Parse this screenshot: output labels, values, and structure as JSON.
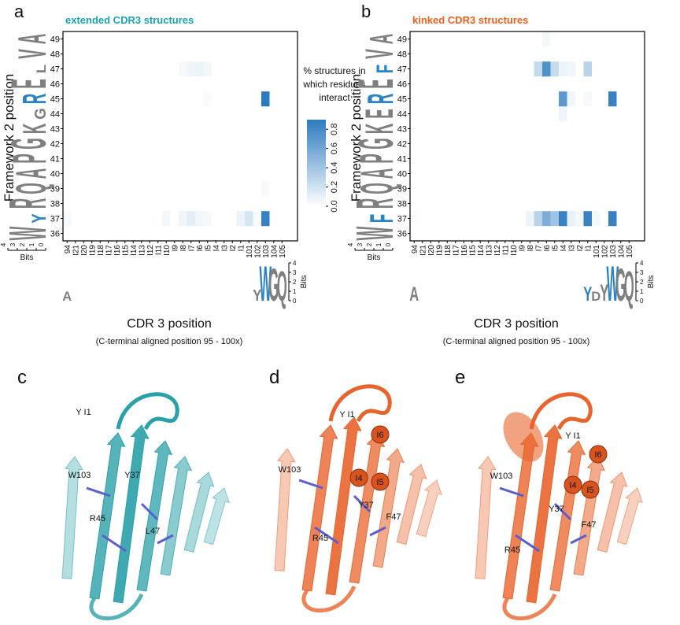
{
  "chart_data": [
    {
      "type": "heatmap",
      "panel_label": "a",
      "title": "extended CDR3 structures",
      "title_color": "#1aa3b0",
      "ylabel": "Framework 2 position",
      "xlabel": "CDR 3 position",
      "xsubtitle": "(C-terminal aligned position 95 - 100x)",
      "x_categories": [
        "94",
        "I21",
        "I20",
        "I19",
        "I18",
        "I17",
        "I16",
        "I15",
        "I14",
        "I13",
        "I12",
        "I11",
        "I10",
        "I9",
        "I8",
        "I7",
        "I6",
        "I5",
        "I4",
        "I3",
        "I2",
        "I1",
        "101",
        "102",
        "103",
        "104",
        "105"
      ],
      "y_categories": [
        36,
        37,
        38,
        39,
        40,
        41,
        42,
        43,
        44,
        45,
        46,
        47,
        48,
        49
      ],
      "color": "#2c7bbf",
      "zlim": [
        0,
        0.9
      ],
      "values": [
        [
          0,
          0,
          0,
          0,
          0,
          0,
          0,
          0,
          0,
          0,
          0,
          0,
          0,
          0,
          0,
          0,
          0,
          0,
          0,
          0,
          0,
          0,
          0,
          0,
          0,
          0,
          0
        ],
        [
          0.04,
          0,
          0,
          0,
          0,
          0,
          0,
          0,
          0,
          0,
          0,
          0,
          0.05,
          0,
          0.07,
          0.12,
          0.06,
          0.04,
          0,
          0,
          0,
          0.08,
          0.18,
          0.03,
          0.85,
          0,
          0
        ],
        [
          0,
          0,
          0,
          0,
          0,
          0,
          0,
          0,
          0,
          0,
          0,
          0,
          0,
          0,
          0,
          0,
          0,
          0,
          0,
          0,
          0,
          0,
          0,
          0,
          0,
          0,
          0
        ],
        [
          0,
          0,
          0,
          0,
          0,
          0,
          0,
          0,
          0,
          0,
          0,
          0,
          0,
          0,
          0,
          0,
          0,
          0,
          0,
          0,
          0,
          0,
          0,
          0,
          0.03,
          0,
          0
        ],
        [
          0,
          0,
          0,
          0,
          0,
          0,
          0,
          0,
          0,
          0,
          0,
          0,
          0,
          0,
          0,
          0,
          0,
          0,
          0,
          0,
          0,
          0,
          0,
          0,
          0,
          0,
          0
        ],
        [
          0,
          0,
          0,
          0,
          0,
          0,
          0,
          0,
          0,
          0,
          0,
          0,
          0,
          0,
          0,
          0,
          0,
          0,
          0,
          0,
          0,
          0,
          0,
          0,
          0,
          0,
          0
        ],
        [
          0,
          0,
          0,
          0,
          0,
          0,
          0,
          0,
          0,
          0,
          0,
          0,
          0,
          0,
          0,
          0,
          0,
          0,
          0,
          0,
          0,
          0,
          0,
          0,
          0,
          0,
          0
        ],
        [
          0,
          0,
          0,
          0,
          0,
          0,
          0,
          0,
          0,
          0,
          0,
          0,
          0,
          0,
          0,
          0,
          0,
          0,
          0,
          0,
          0,
          0,
          0,
          0,
          0,
          0,
          0
        ],
        [
          0,
          0,
          0,
          0,
          0,
          0,
          0,
          0,
          0,
          0,
          0,
          0,
          0,
          0,
          0,
          0,
          0,
          0,
          0,
          0,
          0,
          0,
          0,
          0,
          0,
          0,
          0
        ],
        [
          0,
          0,
          0,
          0,
          0,
          0,
          0,
          0,
          0,
          0,
          0,
          0,
          0,
          0,
          0,
          0,
          0,
          0.03,
          0,
          0,
          0,
          0,
          0,
          0,
          0.9,
          0,
          0
        ],
        [
          0,
          0,
          0,
          0,
          0,
          0,
          0,
          0,
          0,
          0,
          0,
          0,
          0,
          0,
          0,
          0,
          0,
          0,
          0,
          0,
          0,
          0,
          0,
          0,
          0,
          0,
          0
        ],
        [
          0,
          0,
          0,
          0,
          0,
          0,
          0,
          0,
          0,
          0,
          0,
          0,
          0,
          0,
          0.04,
          0.07,
          0.08,
          0.05,
          0,
          0,
          0,
          0,
          0,
          0,
          0,
          0,
          0
        ],
        [
          0,
          0,
          0,
          0,
          0,
          0,
          0,
          0,
          0,
          0,
          0,
          0,
          0,
          0,
          0,
          0,
          0,
          0,
          0,
          0,
          0,
          0,
          0,
          0,
          0,
          0,
          0
        ],
        [
          0,
          0,
          0,
          0,
          0,
          0,
          0,
          0,
          0,
          0,
          0,
          0,
          0,
          0,
          0,
          0,
          0,
          0,
          0,
          0,
          0,
          0,
          0,
          0,
          0,
          0,
          0
        ]
      ],
      "colorbar": {
        "label": [
          "% structures in",
          "which residues",
          "interact"
        ],
        "yticks": [
          {
            "value": 0,
            "label": "0.0"
          },
          0.2,
          0.4,
          0.6,
          0.8
        ]
      },
      "logo_axis": {
        "label": "Bits",
        "ylim": [
          0,
          4
        ],
        "yticks": [
          0,
          1,
          2,
          3,
          4
        ]
      },
      "y_logo": [
        {
          "position": 36,
          "letter": "W",
          "bits": 4,
          "color": "#7f7f7f"
        },
        {
          "position": 37,
          "letter": "Y",
          "bits": 1.5,
          "color": "#2b83c6"
        },
        {
          "position": 38,
          "letter": "R",
          "bits": 4,
          "color": "#7f7f7f"
        },
        {
          "position": 39,
          "letter": "Q",
          "bits": 3.3,
          "color": "#7f7f7f"
        },
        {
          "position": 40,
          "letter": "A",
          "bits": 3.3,
          "color": "#7f7f7f"
        },
        {
          "position": 41,
          "letter": "P",
          "bits": 3.6,
          "color": "#7f7f7f"
        },
        {
          "position": 42,
          "letter": "G",
          "bits": 3.8,
          "color": "#7f7f7f"
        },
        {
          "position": 43,
          "letter": "K",
          "bits": 2.5,
          "color": "#7f7f7f"
        },
        {
          "position": 44,
          "letter": "G",
          "bits": 1.2,
          "color": "#7f7f7f"
        },
        {
          "position": 45,
          "letter": "R",
          "bits": 2.5,
          "color": "#2b83c6"
        },
        {
          "position": 46,
          "letter": "E",
          "bits": 3.8,
          "color": "#7f7f7f"
        },
        {
          "position": 47,
          "letter": "L",
          "bits": 1,
          "color": "#7f7f7f"
        },
        {
          "position": 48,
          "letter": "V",
          "bits": 3,
          "color": "#7f7f7f"
        },
        {
          "position": 49,
          "letter": "A",
          "bits": 3,
          "color": "#7f7f7f"
        }
      ],
      "x_logo": [
        {
          "position": "94",
          "letter": "A",
          "bits": 1,
          "color": "#7f7f7f"
        },
        {
          "position": "102",
          "letter": "Y",
          "bits": 1.2,
          "color": "#7f7f7f"
        },
        {
          "position": "103",
          "letter": "W",
          "bits": 3.8,
          "color": "#2b83c6"
        },
        {
          "position": "104",
          "letter": "G",
          "bits": 3.5,
          "color": "#7f7f7f"
        },
        {
          "position": "105",
          "letter": "Q",
          "bits": 3.2,
          "color": "#7f7f7f"
        }
      ]
    },
    {
      "type": "heatmap",
      "panel_label": "b",
      "title": "kinked CDR3 structures",
      "title_color": "#f0601d",
      "ylabel": "Framework 2 position",
      "xlabel": "CDR 3 position",
      "xsubtitle": "(C-terminal aligned position 95 - 100x)",
      "x_categories": [
        "94",
        "I21",
        "I20",
        "I19",
        "I18",
        "I17",
        "I16",
        "I15",
        "I14",
        "I13",
        "I12",
        "I11",
        "I10",
        "I9",
        "I8",
        "I7",
        "I6",
        "I5",
        "I4",
        "I3",
        "I2",
        "I1",
        "101",
        "102",
        "103",
        "104",
        "105"
      ],
      "y_categories": [
        36,
        37,
        38,
        39,
        40,
        41,
        42,
        43,
        44,
        45,
        46,
        47,
        48,
        49
      ],
      "color": "#2c7bbf",
      "zlim": [
        0,
        0.9
      ],
      "values": [
        [
          0,
          0,
          0,
          0,
          0,
          0,
          0,
          0,
          0,
          0,
          0,
          0,
          0,
          0,
          0,
          0,
          0,
          0,
          0,
          0,
          0,
          0,
          0,
          0,
          0,
          0,
          0
        ],
        [
          0.02,
          0,
          0,
          0,
          0,
          0,
          0,
          0,
          0,
          0,
          0,
          0,
          0,
          0,
          0.08,
          0.3,
          0.55,
          0.4,
          0.85,
          0.1,
          0.05,
          0.85,
          0.05,
          0,
          0.85,
          0,
          0
        ],
        [
          0,
          0,
          0,
          0,
          0,
          0,
          0,
          0,
          0,
          0,
          0,
          0,
          0,
          0,
          0,
          0,
          0,
          0,
          0,
          0,
          0,
          0,
          0,
          0,
          0,
          0,
          0
        ],
        [
          0,
          0,
          0,
          0,
          0,
          0,
          0,
          0,
          0,
          0,
          0,
          0,
          0,
          0,
          0,
          0,
          0,
          0,
          0,
          0,
          0,
          0,
          0,
          0,
          0,
          0,
          0
        ],
        [
          0,
          0,
          0,
          0,
          0,
          0,
          0,
          0,
          0,
          0,
          0,
          0,
          0,
          0,
          0,
          0,
          0,
          0,
          0,
          0,
          0,
          0,
          0,
          0,
          0,
          0,
          0
        ],
        [
          0,
          0,
          0,
          0,
          0,
          0,
          0,
          0,
          0,
          0,
          0,
          0,
          0,
          0,
          0,
          0,
          0,
          0,
          0,
          0,
          0,
          0,
          0,
          0,
          0,
          0,
          0
        ],
        [
          0,
          0,
          0,
          0,
          0,
          0,
          0,
          0,
          0,
          0,
          0,
          0,
          0,
          0,
          0,
          0,
          0,
          0,
          0,
          0,
          0,
          0,
          0,
          0,
          0,
          0,
          0
        ],
        [
          0,
          0,
          0,
          0,
          0,
          0,
          0,
          0,
          0,
          0,
          0,
          0,
          0,
          0,
          0,
          0,
          0,
          0,
          0,
          0,
          0,
          0,
          0,
          0,
          0,
          0,
          0
        ],
        [
          0,
          0,
          0,
          0,
          0,
          0,
          0,
          0,
          0,
          0,
          0,
          0,
          0,
          0,
          0,
          0,
          0,
          0,
          0.07,
          0,
          0,
          0,
          0,
          0,
          0,
          0,
          0
        ],
        [
          0,
          0,
          0,
          0,
          0,
          0,
          0,
          0,
          0,
          0,
          0,
          0,
          0,
          0,
          0,
          0,
          0,
          0,
          0.7,
          0.06,
          0,
          0.04,
          0,
          0,
          0.85,
          0,
          0
        ],
        [
          0,
          0,
          0,
          0,
          0,
          0,
          0,
          0,
          0,
          0,
          0,
          0,
          0,
          0,
          0,
          0,
          0,
          0,
          0,
          0,
          0,
          0,
          0,
          0,
          0,
          0,
          0
        ],
        [
          0,
          0,
          0,
          0,
          0,
          0,
          0,
          0,
          0,
          0,
          0,
          0,
          0,
          0,
          0,
          0.25,
          0.75,
          0.25,
          0.08,
          0.06,
          0,
          0.3,
          0,
          0,
          0,
          0,
          0
        ],
        [
          0,
          0,
          0,
          0,
          0,
          0,
          0,
          0,
          0,
          0,
          0,
          0,
          0,
          0,
          0,
          0,
          0,
          0,
          0,
          0,
          0,
          0,
          0,
          0,
          0,
          0,
          0
        ],
        [
          0,
          0,
          0,
          0,
          0,
          0,
          0,
          0,
          0,
          0,
          0,
          0,
          0,
          0,
          0,
          0,
          0.05,
          0,
          0,
          0,
          0,
          0,
          0,
          0,
          0,
          0,
          0
        ]
      ],
      "logo_axis": {
        "label": "Bits",
        "ylim": [
          0,
          4
        ],
        "yticks": [
          0,
          1,
          2,
          3,
          4
        ]
      },
      "y_logo": [
        {
          "position": 36,
          "letter": "W",
          "bits": 4,
          "color": "#7f7f7f"
        },
        {
          "position": 37,
          "letter": "F",
          "bits": 2.5,
          "color": "#2b83c6"
        },
        {
          "position": 38,
          "letter": "R",
          "bits": 4,
          "color": "#7f7f7f"
        },
        {
          "position": 39,
          "letter": "Q",
          "bits": 3.5,
          "color": "#7f7f7f"
        },
        {
          "position": 40,
          "letter": "A",
          "bits": 3.5,
          "color": "#7f7f7f"
        },
        {
          "position": 41,
          "letter": "P",
          "bits": 3.6,
          "color": "#7f7f7f"
        },
        {
          "position": 42,
          "letter": "G",
          "bits": 3.8,
          "color": "#7f7f7f"
        },
        {
          "position": 43,
          "letter": "K",
          "bits": 3,
          "color": "#7f7f7f"
        },
        {
          "position": 44,
          "letter": "E",
          "bits": 3,
          "color": "#7f7f7f"
        },
        {
          "position": 45,
          "letter": "R",
          "bits": 2.8,
          "color": "#2b83c6"
        },
        {
          "position": 46,
          "letter": "E",
          "bits": 3.8,
          "color": "#7f7f7f"
        },
        {
          "position": 47,
          "letter": "F",
          "bits": 1.8,
          "color": "#2b83c6"
        },
        {
          "position": 48,
          "letter": "V",
          "bits": 3,
          "color": "#7f7f7f"
        },
        {
          "position": 49,
          "letter": "A",
          "bits": 2.5,
          "color": "#7f7f7f"
        }
      ],
      "x_logo": [
        {
          "position": "94",
          "letter": "A",
          "bits": 1.5,
          "color": "#7f7f7f"
        },
        {
          "position": "I1",
          "letter": "Y",
          "bits": 1.5,
          "color": "#2b83c6"
        },
        {
          "position": "101",
          "letter": "D",
          "bits": 1,
          "color": "#7f7f7f"
        },
        {
          "position": "102",
          "letter": "Y",
          "bits": 1.8,
          "color": "#7f7f7f"
        },
        {
          "position": "103",
          "letter": "W",
          "bits": 3.8,
          "color": "#2b83c6"
        },
        {
          "position": "104",
          "letter": "G",
          "bits": 3.5,
          "color": "#7f7f7f"
        },
        {
          "position": "105",
          "letter": "Q",
          "bits": 3.2,
          "color": "#7f7f7f"
        }
      ]
    }
  ],
  "structures": [
    {
      "label": "c",
      "residues": [
        "Y I1",
        "W103",
        "Y37",
        "R45",
        "L47"
      ]
    },
    {
      "label": "d",
      "residues": [
        "Y I1",
        "W103",
        "I6",
        "I4",
        "I5",
        "Y37",
        "F47",
        "R45"
      ]
    },
    {
      "label": "e",
      "residues": [
        "Y I1",
        "W103",
        "I6",
        "I4",
        "I5",
        "Y37",
        "F47",
        "R45"
      ]
    }
  ]
}
